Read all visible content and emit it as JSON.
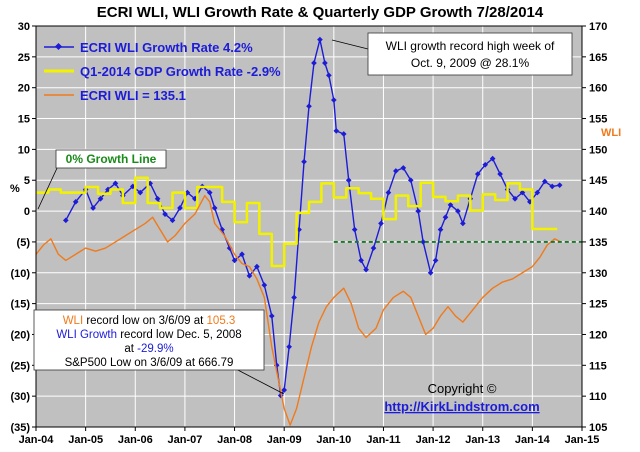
{
  "chart_data": {
    "type": "line",
    "title": "ECRI WLI, WLI Growth Rate & Quarterly GDP Growth 7/28/2014",
    "left_axis_label": "%",
    "right_axis_label": "WLI",
    "left_ylim": [
      -35,
      30
    ],
    "right_ylim": [
      105,
      170
    ],
    "left_ticks": [
      30,
      25,
      20,
      15,
      10,
      5,
      0,
      -5,
      -10,
      -15,
      -20,
      -25,
      -30,
      -35
    ],
    "left_tick_labels": [
      "30",
      "25",
      "20",
      "15",
      "10",
      "5",
      "0",
      "(5)",
      "(10)",
      "(15)",
      "(20)",
      "(25)",
      "(30)",
      "(35)"
    ],
    "right_ticks": [
      170,
      165,
      160,
      155,
      150,
      145,
      140,
      135,
      130,
      125,
      120,
      115,
      110,
      105
    ],
    "x_ticks": [
      2004,
      2005,
      2006,
      2007,
      2008,
      2009,
      2010,
      2011,
      2012,
      2013,
      2014,
      2015
    ],
    "x_tick_labels": [
      "Jan-04",
      "Jan-05",
      "Jan-06",
      "Jan-07",
      "Jan-08",
      "Jan-09",
      "Jan-10",
      "Jan-11",
      "Jan-12",
      "Jan-13",
      "Jan-14",
      "Jan-15"
    ],
    "xlim": [
      2004,
      2015
    ],
    "grid": true,
    "legend_position": "top-left",
    "series": [
      {
        "name": "ECRI WLI Growth Rate 4.2%",
        "axis": "left",
        "color": "#1c1cd8",
        "marker": "diamond",
        "points": [
          [
            2004.6,
            -1.5
          ],
          [
            2004.8,
            1.5
          ],
          [
            2005.0,
            3.5
          ],
          [
            2005.15,
            0.5
          ],
          [
            2005.3,
            2.0
          ],
          [
            2005.45,
            3.5
          ],
          [
            2005.6,
            4.5
          ],
          [
            2005.75,
            2.5
          ],
          [
            2005.95,
            4.0
          ],
          [
            2006.1,
            3.0
          ],
          [
            2006.3,
            4.5
          ],
          [
            2006.45,
            2.0
          ],
          [
            2006.6,
            -0.5
          ],
          [
            2006.75,
            -1.5
          ],
          [
            2006.9,
            0.5
          ],
          [
            2007.05,
            3.0
          ],
          [
            2007.2,
            2.0
          ],
          [
            2007.35,
            4.0
          ],
          [
            2007.5,
            3.0
          ],
          [
            2007.6,
            0.5
          ],
          [
            2007.75,
            -3.0
          ],
          [
            2007.9,
            -6.0
          ],
          [
            2008.0,
            -8.0
          ],
          [
            2008.15,
            -7.0
          ],
          [
            2008.3,
            -10.5
          ],
          [
            2008.45,
            -9.0
          ],
          [
            2008.6,
            -12.0
          ],
          [
            2008.75,
            -17.0
          ],
          [
            2008.85,
            -25.0
          ],
          [
            2008.93,
            -29.9
          ],
          [
            2009.0,
            -29.0
          ],
          [
            2009.1,
            -22.0
          ],
          [
            2009.2,
            -14.0
          ],
          [
            2009.3,
            -3.0
          ],
          [
            2009.4,
            8.0
          ],
          [
            2009.5,
            17.0
          ],
          [
            2009.6,
            24.0
          ],
          [
            2009.72,
            27.8
          ],
          [
            2009.82,
            24.0
          ],
          [
            2009.9,
            22.0
          ],
          [
            2010.0,
            18.0
          ],
          [
            2010.05,
            13.0
          ],
          [
            2010.2,
            12.5
          ],
          [
            2010.3,
            5.0
          ],
          [
            2010.42,
            -3.0
          ],
          [
            2010.55,
            -8.0
          ],
          [
            2010.65,
            -9.5
          ],
          [
            2010.8,
            -6.0
          ],
          [
            2010.95,
            -2.0
          ],
          [
            2011.1,
            3.0
          ],
          [
            2011.25,
            6.5
          ],
          [
            2011.4,
            7.0
          ],
          [
            2011.55,
            5.0
          ],
          [
            2011.7,
            0.0
          ],
          [
            2011.8,
            -5.0
          ],
          [
            2011.95,
            -10.0
          ],
          [
            2012.05,
            -8.0
          ],
          [
            2012.15,
            -3.0
          ],
          [
            2012.25,
            -1.0
          ],
          [
            2012.35,
            1.0
          ],
          [
            2012.5,
            0.0
          ],
          [
            2012.6,
            -2.0
          ],
          [
            2012.75,
            2.0
          ],
          [
            2012.9,
            6.0
          ],
          [
            2013.05,
            7.5
          ],
          [
            2013.2,
            8.5
          ],
          [
            2013.35,
            6.0
          ],
          [
            2013.5,
            3.5
          ],
          [
            2013.65,
            2.0
          ],
          [
            2013.8,
            3.0
          ],
          [
            2013.95,
            1.5
          ],
          [
            2014.1,
            3.0
          ],
          [
            2014.25,
            4.8
          ],
          [
            2014.4,
            4.0
          ],
          [
            2014.55,
            4.2
          ]
        ]
      },
      {
        "name": "Q1-2014 GDP Growth Rate -2.9%",
        "axis": "left",
        "color": "#f2f200",
        "step": true,
        "points": [
          [
            2004.0,
            3.0
          ],
          [
            2004.25,
            3.5
          ],
          [
            2004.5,
            3.0
          ],
          [
            2004.75,
            3.0
          ],
          [
            2005.0,
            3.9
          ],
          [
            2005.25,
            2.8
          ],
          [
            2005.5,
            3.5
          ],
          [
            2005.75,
            1.3
          ],
          [
            2006.0,
            5.4
          ],
          [
            2006.25,
            1.3
          ],
          [
            2006.5,
            0.5
          ],
          [
            2006.75,
            3.0
          ],
          [
            2007.0,
            0.5
          ],
          [
            2007.25,
            3.9
          ],
          [
            2007.5,
            3.9
          ],
          [
            2007.75,
            1.5
          ],
          [
            2008.0,
            -1.8
          ],
          [
            2008.25,
            1.3
          ],
          [
            2008.5,
            -3.7
          ],
          [
            2008.75,
            -8.9
          ],
          [
            2009.0,
            -5.3
          ],
          [
            2009.25,
            -0.3
          ],
          [
            2009.5,
            1.5
          ],
          [
            2009.75,
            4.5
          ],
          [
            2010.0,
            2.2
          ],
          [
            2010.25,
            3.7
          ],
          [
            2010.5,
            2.9
          ],
          [
            2010.75,
            2.0
          ],
          [
            2011.0,
            -1.3
          ],
          [
            2011.25,
            2.5
          ],
          [
            2011.5,
            0.8
          ],
          [
            2011.75,
            4.6
          ],
          [
            2012.0,
            2.3
          ],
          [
            2012.25,
            1.6
          ],
          [
            2012.5,
            2.5
          ],
          [
            2012.75,
            0.1
          ],
          [
            2013.0,
            2.7
          ],
          [
            2013.25,
            1.8
          ],
          [
            2013.5,
            4.5
          ],
          [
            2013.75,
            3.5
          ],
          [
            2014.0,
            -2.9
          ],
          [
            2014.25,
            -2.9
          ]
        ]
      },
      {
        "name": "ECRI WLI = 135.1",
        "axis": "right",
        "color": "#f07a1c",
        "points": [
          [
            2004.0,
            133.0
          ],
          [
            2004.15,
            134.5
          ],
          [
            2004.3,
            135.5
          ],
          [
            2004.45,
            133.0
          ],
          [
            2004.6,
            132.0
          ],
          [
            2004.8,
            133.0
          ],
          [
            2005.0,
            134.0
          ],
          [
            2005.2,
            133.5
          ],
          [
            2005.4,
            134.0
          ],
          [
            2005.6,
            135.0
          ],
          [
            2005.8,
            136.0
          ],
          [
            2006.0,
            137.0
          ],
          [
            2006.2,
            138.0
          ],
          [
            2006.35,
            139.0
          ],
          [
            2006.5,
            137.0
          ],
          [
            2006.65,
            135.0
          ],
          [
            2006.8,
            136.0
          ],
          [
            2007.0,
            138.0
          ],
          [
            2007.2,
            139.5
          ],
          [
            2007.4,
            142.5
          ],
          [
            2007.5,
            141.5
          ],
          [
            2007.6,
            138.0
          ],
          [
            2007.8,
            136.0
          ],
          [
            2008.0,
            133.0
          ],
          [
            2008.15,
            131.5
          ],
          [
            2008.3,
            131.0
          ],
          [
            2008.45,
            129.0
          ],
          [
            2008.6,
            126.0
          ],
          [
            2008.75,
            118.0
          ],
          [
            2008.9,
            112.0
          ],
          [
            2009.0,
            108.0
          ],
          [
            2009.12,
            105.3
          ],
          [
            2009.25,
            108.0
          ],
          [
            2009.4,
            113.0
          ],
          [
            2009.55,
            118.0
          ],
          [
            2009.7,
            122.0
          ],
          [
            2009.85,
            124.5
          ],
          [
            2010.0,
            126.0
          ],
          [
            2010.2,
            127.5
          ],
          [
            2010.35,
            125.0
          ],
          [
            2010.5,
            121.0
          ],
          [
            2010.65,
            119.5
          ],
          [
            2010.85,
            121.0
          ],
          [
            2011.0,
            124.0
          ],
          [
            2011.2,
            126.0
          ],
          [
            2011.4,
            127.0
          ],
          [
            2011.55,
            126.0
          ],
          [
            2011.7,
            123.0
          ],
          [
            2011.85,
            120.0
          ],
          [
            2012.0,
            121.0
          ],
          [
            2012.15,
            123.0
          ],
          [
            2012.3,
            124.5
          ],
          [
            2012.45,
            123.0
          ],
          [
            2012.6,
            122.0
          ],
          [
            2012.8,
            124.0
          ],
          [
            2013.0,
            126.0
          ],
          [
            2013.2,
            127.5
          ],
          [
            2013.4,
            128.5
          ],
          [
            2013.6,
            129.0
          ],
          [
            2013.8,
            130.0
          ],
          [
            2014.0,
            131.0
          ],
          [
            2014.15,
            132.5
          ],
          [
            2014.3,
            134.5
          ],
          [
            2014.45,
            135.5
          ],
          [
            2014.55,
            135.1
          ]
        ]
      },
      {
        "name": "",
        "axis": "right",
        "color": "#1a7a2a",
        "dashed": true,
        "points": [
          [
            2010.0,
            135.0
          ],
          [
            2015.0,
            135.0
          ]
        ]
      }
    ],
    "annotations": {
      "growth_line_label": "0%  Growth Line",
      "record_high_line1": "WLI growth record high week of",
      "record_high_line2": "Oct. 9, 2009 @ 28.1%",
      "low_line1_a": "WLI",
      "low_line1_b": " record low on 3/6/09 at ",
      "low_line1_c": "105.3",
      "low_line2_a": "WLI Growth",
      "low_line2_b": " record low Dec. 5, 2008",
      "low_line3_a": "at ",
      "low_line3_b": "-29.9%",
      "low_line4": "S&P500 Low on 3/6/09 at 666.79",
      "copyright": "Copyright ©",
      "website": "http://KirkLindstrom.com"
    }
  }
}
